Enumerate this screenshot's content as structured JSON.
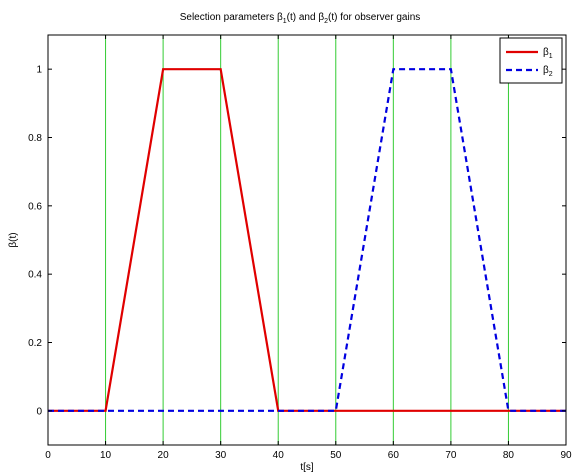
{
  "chart_data": {
    "type": "line",
    "title": {
      "prefix": "Selection parameters β",
      "sub1": "1",
      "mid": "(t) and β",
      "sub2": "2",
      "suffix": "(t) for observer gains"
    },
    "xlabel": "t[s]",
    "ylabel": "β(t)",
    "xlim": [
      0,
      90
    ],
    "ylim": [
      -0.1,
      1.1
    ],
    "xticks": [
      0,
      10,
      20,
      30,
      40,
      50,
      60,
      70,
      80,
      90
    ],
    "yticks": [
      0,
      0.2,
      0.4,
      0.6,
      0.8,
      1
    ],
    "ytick_labels": [
      "0",
      "0.2",
      "0.4",
      "0.6",
      "0.8",
      "1"
    ],
    "vlines": [
      10,
      20,
      30,
      40,
      50,
      60,
      70,
      80
    ],
    "vline_color": "#33cc33",
    "legend_position": "top-right",
    "series": [
      {
        "name": "β",
        "subscript": "1",
        "color": "#e00000",
        "style": "solid",
        "x": [
          0,
          10,
          20,
          30,
          40,
          50,
          60,
          70,
          80,
          90
        ],
        "y": [
          0,
          0,
          1,
          1,
          0,
          0,
          0,
          0,
          0,
          0
        ]
      },
      {
        "name": "β",
        "subscript": "2",
        "color": "#0000e0",
        "style": "dashed",
        "x": [
          0,
          10,
          20,
          30,
          40,
          50,
          60,
          70,
          80,
          90
        ],
        "y": [
          0,
          0,
          0,
          0,
          0,
          0,
          1,
          1,
          0,
          0
        ]
      }
    ]
  }
}
